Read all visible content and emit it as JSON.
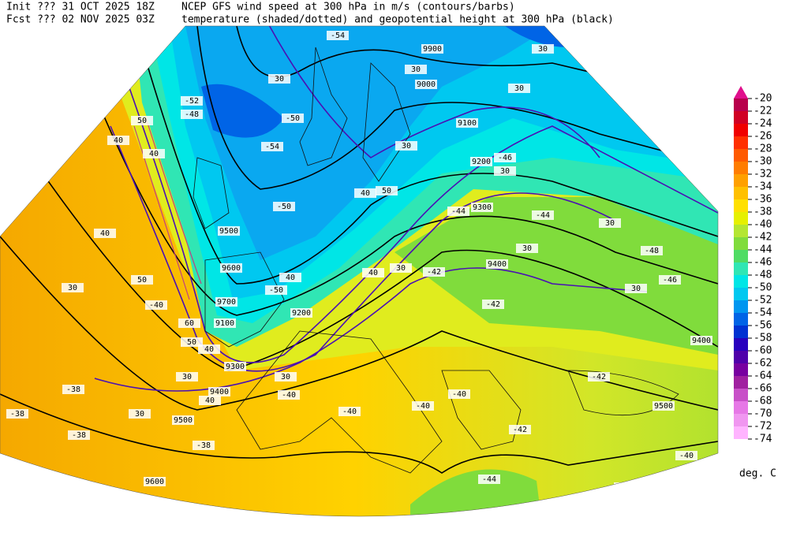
{
  "header": {
    "init": "Init  ??? 31 OCT 2025 18Z",
    "fcst": "Fcst ??? 02 NOV 2025 03Z",
    "line1": "NCEP GFS wind speed at 300 hPa in m/s (contours/barbs)",
    "line2": "temperature (shaded/dotted) and geopotential height at 300 hPa (black)"
  },
  "colorbar": {
    "labels": [
      -20,
      -22,
      -24,
      -26,
      -28,
      -30,
      -32,
      -34,
      -36,
      -38,
      -40,
      -42,
      -44,
      -46,
      -48,
      -50,
      -52,
      -54,
      -56,
      -58,
      -60,
      -62,
      -64,
      -66,
      -68,
      -70,
      -72,
      -74
    ],
    "colors": [
      "#e0108c",
      "#b8004c",
      "#d00024",
      "#f00000",
      "#ff3000",
      "#ff5a00",
      "#ff7d00",
      "#ffa000",
      "#ffc000",
      "#ffe000",
      "#e6f000",
      "#b4e632",
      "#80dc3c",
      "#50dc64",
      "#30e6b4",
      "#00e6e6",
      "#00c8f0",
      "#0096f0",
      "#0064e6",
      "#0032d2",
      "#2800be",
      "#5000aa",
      "#7800a0",
      "#a020a0",
      "#c850c8",
      "#e678e6",
      "#f096f0",
      "#ffb4ff"
    ],
    "unit": "deg. C"
  },
  "map_labels": [
    "-54",
    "9900",
    "30",
    "9000",
    "30",
    "30",
    "30",
    "-52",
    "-48",
    "-54",
    "-50",
    "30",
    "9100",
    "9200",
    "-46",
    "30",
    "40",
    "50",
    "-50",
    "9300",
    "-44",
    "-44",
    "30",
    "-48",
    "-46",
    "30",
    "30",
    "9400",
    "-42",
    "30",
    "40",
    "-42",
    "9500",
    "9600",
    "9700",
    "9100",
    "9200",
    "40",
    "-50",
    "50",
    "40",
    "40",
    "40",
    "50",
    "30",
    "-40",
    "60",
    "50",
    "40",
    "9300",
    "30",
    "30",
    "9400",
    "40",
    "-40",
    "30",
    "9500",
    "-38",
    "-38",
    "-38",
    "-38",
    "-40",
    "-40",
    "-40",
    "9400",
    "-42",
    "9500",
    "-42",
    "-44",
    "9600",
    "-40",
    "-40"
  ]
}
